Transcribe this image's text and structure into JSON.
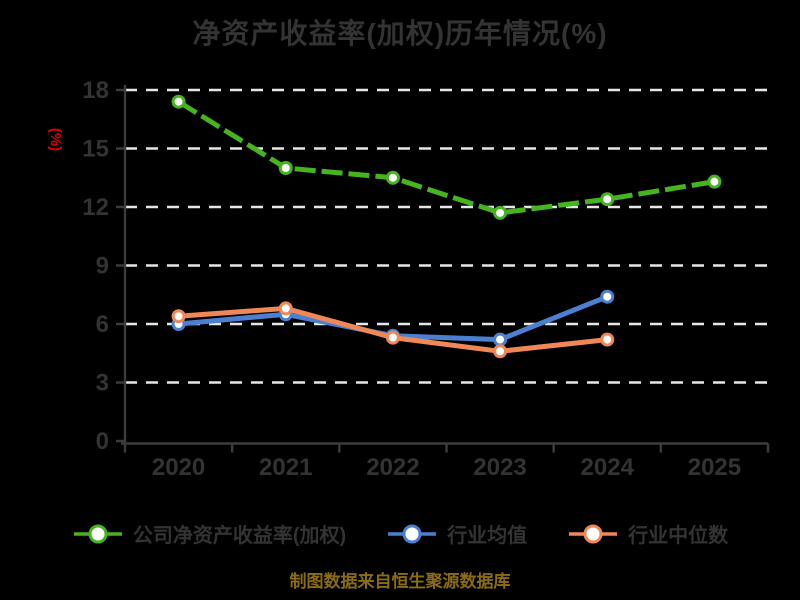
{
  "title": "净资产收益率(加权)历年情况(%)",
  "caption": "制图数据来自恒生聚源数据库",
  "chart_data": {
    "type": "line",
    "title": "净资产收益率(加权)历年情况(%)",
    "ylabel": "(%)",
    "xlabel": "",
    "categories": [
      "2020",
      "2021",
      "2022",
      "2023",
      "2024",
      "2025"
    ],
    "series": [
      {
        "name": "公司净资产收益率(加权)",
        "color": "#46b41e",
        "line_style": "dashed",
        "marker": "circle-white-fill",
        "values": [
          17.4,
          14.0,
          13.5,
          11.7,
          12.4,
          13.3
        ]
      },
      {
        "name": "行业均值",
        "color": "#4b80d1",
        "line_style": "solid",
        "marker": "circle-white-fill",
        "values": [
          6.0,
          6.5,
          5.4,
          5.2,
          7.4,
          null
        ]
      },
      {
        "name": "行业中位数",
        "color": "#f08756",
        "line_style": "solid",
        "marker": "circle-white-fill",
        "values": [
          6.4,
          6.8,
          5.3,
          4.6,
          5.2,
          null
        ]
      }
    ],
    "ylim": [
      0,
      18
    ],
    "yticks": [
      0,
      3,
      6,
      9,
      12,
      15,
      18
    ],
    "grid": "horizontal white dashed lines",
    "legend_position": "bottom"
  },
  "colors": {
    "background": "#000000",
    "text": "#333333",
    "axis": "#3c3c3c",
    "gridline": "#e6e6e6",
    "ylabel_text": "#dd0000",
    "caption_text": "#8a6c15",
    "marker_fill": "#ffffff"
  }
}
